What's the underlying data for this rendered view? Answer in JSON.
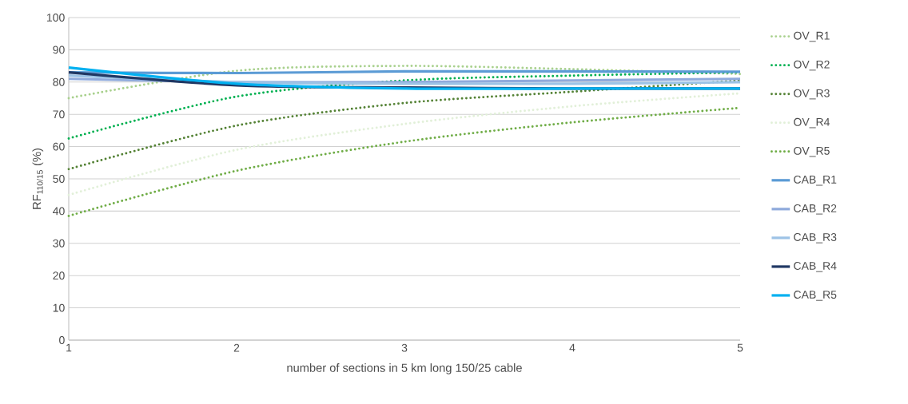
{
  "chart_data": {
    "type": "line",
    "xlabel": "number of sections in 5 km long 150/25 cable",
    "ylabel": "RF$_{110/15}$  (%)",
    "x": [
      1,
      2,
      3,
      4,
      5
    ],
    "xlim": [
      1,
      5
    ],
    "xticks": [
      1,
      2,
      3,
      4,
      5
    ],
    "ylim": [
      0,
      100
    ],
    "yticks": [
      0,
      10,
      20,
      30,
      40,
      50,
      60,
      70,
      80,
      90,
      100
    ],
    "grid": "y",
    "legend": "right",
    "marker": "none",
    "series": [
      {
        "name": "OV_R1",
        "color": "#a9d18e",
        "line_style": "dotted",
        "values": [
          75,
          83.5,
          85,
          84,
          82.5
        ]
      },
      {
        "name": "OV_R2",
        "color": "#00b050",
        "line_style": "dotted",
        "values": [
          62.5,
          75.5,
          80.5,
          82,
          83
        ]
      },
      {
        "name": "OV_R3",
        "color": "#548235",
        "line_style": "dotted",
        "values": [
          53,
          66.5,
          73.5,
          77,
          80.5
        ]
      },
      {
        "name": "OV_R4",
        "color": "#e2f0d9",
        "line_style": "dotted",
        "values": [
          45,
          59,
          67,
          72.5,
          76.5
        ]
      },
      {
        "name": "OV_R5",
        "color": "#70ad47",
        "line_style": "dotted",
        "values": [
          38.5,
          52.5,
          61.5,
          67.5,
          72
        ]
      },
      {
        "name": "CAB_R1",
        "color": "#5b9bd5",
        "line_style": "solid",
        "values": [
          83,
          82.8,
          83.3,
          83.3,
          83.2
        ]
      },
      {
        "name": "CAB_R2",
        "color": "#8faadc",
        "line_style": "solid",
        "values": [
          81,
          80,
          80,
          80.5,
          81
        ]
      },
      {
        "name": "CAB_R3",
        "color": "#9dc3e6",
        "line_style": "solid",
        "values": [
          82,
          80,
          79.5,
          79.5,
          80
        ]
      },
      {
        "name": "CAB_R4",
        "color": "#203864",
        "line_style": "solid",
        "values": [
          83,
          79,
          78.3,
          78,
          78
        ]
      },
      {
        "name": "CAB_R5",
        "color": "#00b0f0",
        "line_style": "solid",
        "values": [
          84.5,
          79.5,
          78,
          78,
          78
        ]
      }
    ]
  }
}
